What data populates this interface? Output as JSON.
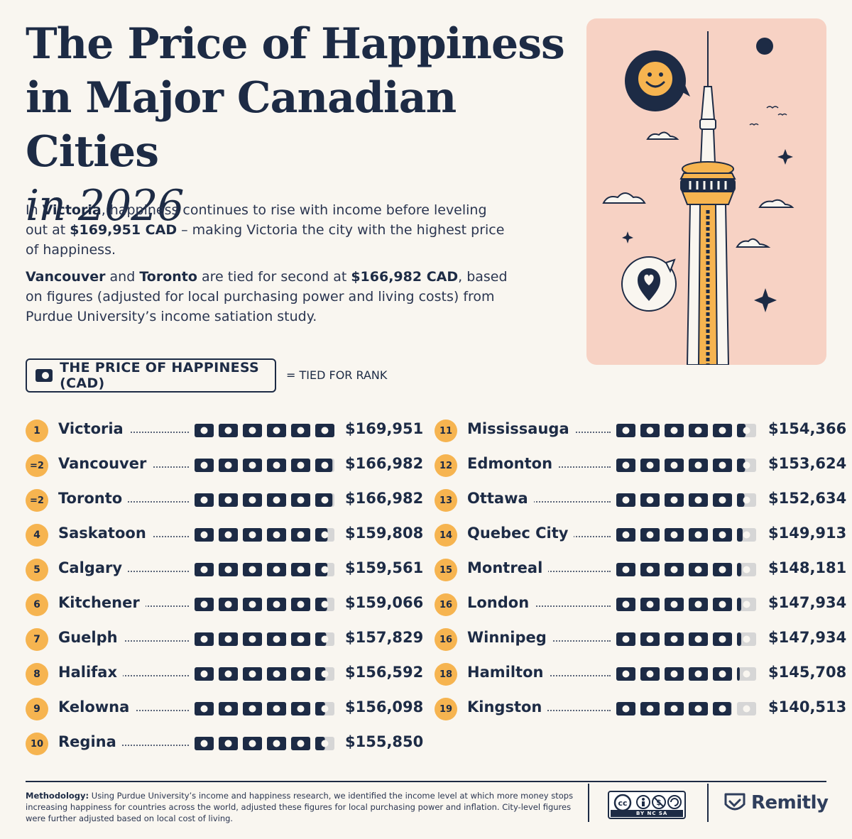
{
  "title": {
    "line1": "The Price of Happiness",
    "line2": "in Major Canadian Cities",
    "line3": "in 2026"
  },
  "intro": {
    "p1": [
      {
        "t": "In ",
        "b": false
      },
      {
        "t": "Victoria",
        "b": true
      },
      {
        "t": ", happiness continues to rise with income before leveling out at ",
        "b": false
      },
      {
        "t": "$169,951 CAD",
        "b": true
      },
      {
        "t": " – making Victoria the city with the highest price of happiness.",
        "b": false
      }
    ],
    "p2": [
      {
        "t": "Vancouver",
        "b": true
      },
      {
        "t": " and ",
        "b": false
      },
      {
        "t": "Toronto",
        "b": true
      },
      {
        "t": " are tied for second at ",
        "b": false
      },
      {
        "t": "$166,982 CAD",
        "b": true
      },
      {
        "t": ", based on figures (adjusted for local purchasing power and living costs) from Purdue University’s income satiation study.",
        "b": false
      }
    ]
  },
  "legend": {
    "label": "THE PRICE OF HAPPINESS (CAD)",
    "tie_note": "= TIED FOR RANK"
  },
  "colors": {
    "navy": "#1d2b45",
    "badge": "#f6b450",
    "bill_empty": "#d6d6d6",
    "illustration_bg": "#f7d2c4"
  },
  "chart_data": {
    "type": "bar",
    "unit_icon": "money-bill-icon",
    "categories": [
      "Victoria",
      "Vancouver",
      "Toronto",
      "Saskatoon",
      "Calgary",
      "Kitchener",
      "Guelph",
      "Halifax",
      "Kelowna",
      "Regina",
      "Mississauga",
      "Edmonton",
      "Ottawa",
      "Quebec City",
      "Montreal",
      "London",
      "Winnipeg",
      "Hamilton",
      "Kingston"
    ],
    "ranks": [
      "1",
      "=2",
      "=2",
      "4",
      "5",
      "6",
      "7",
      "8",
      "9",
      "10",
      "11",
      "12",
      "13",
      "14",
      "15",
      "16",
      "16",
      "18",
      "19"
    ],
    "values": [
      169951,
      166982,
      166982,
      159808,
      159561,
      159066,
      157829,
      156592,
      156098,
      155850,
      154366,
      153624,
      152634,
      149913,
      148181,
      147934,
      147934,
      145708,
      140513
    ],
    "labels": [
      "$169,951",
      "$166,982",
      "$166,982",
      "$159,808",
      "$159,561",
      "$159,066",
      "$157,829",
      "$156,592",
      "$156,098",
      "$155,850",
      "$154,366",
      "$153,624",
      "$152,634",
      "$149,913",
      "$148,181",
      "$147,934",
      "$147,934",
      "$145,708",
      "$140,513"
    ],
    "bills_full_value": 169951,
    "bills_count": 6
  },
  "footer": {
    "methodology_label": "Methodology:",
    "methodology_text": "Using Purdue University’s income and happiness research, we identified the income level at which more money stops increasing happiness for countries across the world, adjusted these figures for local purchasing power and inflation. City-level figures were further adjusted based on local cost of living.",
    "cc_text": "BY  NC  SA",
    "brand": "Remitly"
  }
}
